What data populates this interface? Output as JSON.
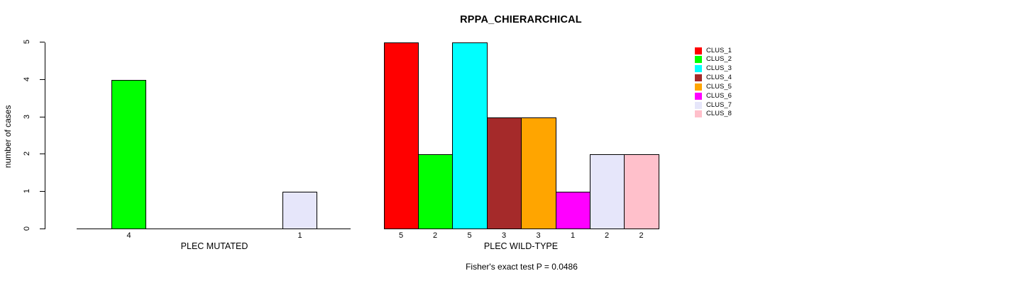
{
  "title": "RPPA_CHIERARCHICAL",
  "footnote": "Fisher's exact test P = 0.0486",
  "ylabel": "number of cases",
  "chart_data": [
    {
      "type": "bar",
      "panel": "left",
      "xlabel": "PLEC MUTATED",
      "categories": [
        "4",
        "1"
      ],
      "values": [
        4,
        1
      ],
      "bar_colors": [
        "#00FF00",
        "#E6E6FA"
      ],
      "clusters": [
        "CLUS_2",
        "CLUS_7"
      ],
      "ylabel": "number of cases",
      "ylim": [
        0,
        5
      ],
      "yticks": [
        0,
        1,
        2,
        3,
        4,
        5
      ],
      "grid": false
    },
    {
      "type": "bar",
      "panel": "right",
      "xlabel": "PLEC WILD-TYPE",
      "categories": [
        "5",
        "2",
        "5",
        "3",
        "3",
        "1",
        "2",
        "2"
      ],
      "values": [
        5,
        2,
        5,
        3,
        3,
        1,
        2,
        2
      ],
      "bar_colors": [
        "#FF0000",
        "#00FF00",
        "#00FFFF",
        "#A52A2A",
        "#FFA500",
        "#FF00FF",
        "#E6E6FA",
        "#FFC0CB"
      ],
      "clusters": [
        "CLUS_1",
        "CLUS_2",
        "CLUS_3",
        "CLUS_4",
        "CLUS_5",
        "CLUS_6",
        "CLUS_7",
        "CLUS_8"
      ],
      "ylim": [
        0,
        5
      ],
      "grid": false
    }
  ],
  "legend": {
    "position": "right",
    "entries": [
      {
        "label": "CLUS_1",
        "color": "#FF0000"
      },
      {
        "label": "CLUS_2",
        "color": "#00FF00"
      },
      {
        "label": "CLUS_3",
        "color": "#00FFFF"
      },
      {
        "label": "CLUS_4",
        "color": "#A52A2A"
      },
      {
        "label": "CLUS_5",
        "color": "#FFA500"
      },
      {
        "label": "CLUS_6",
        "color": "#FF00FF"
      },
      {
        "label": "CLUS_7",
        "color": "#E6E6FA"
      },
      {
        "label": "CLUS_8",
        "color": "#FFC0CB"
      }
    ]
  }
}
